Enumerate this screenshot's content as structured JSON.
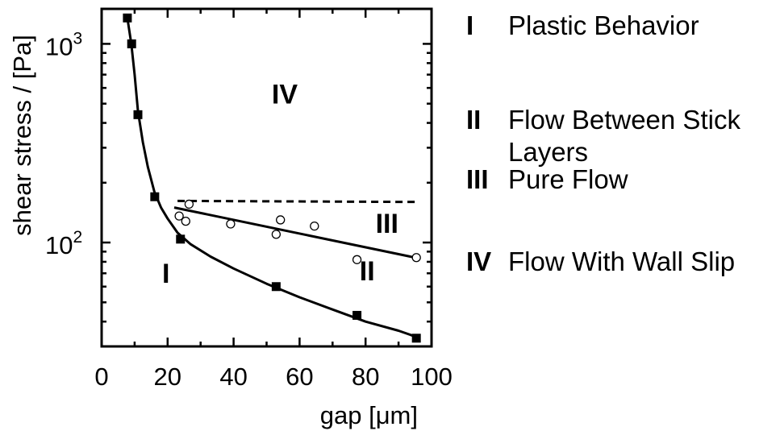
{
  "chart_data": {
    "type": "scatter",
    "xlabel": "gap [μm]",
    "ylabel": "shear stress / [Pa]",
    "xlim": [
      0,
      100
    ],
    "ylim": [
      30,
      1500
    ],
    "yscale": "log",
    "x_ticks": [
      {
        "value": 0,
        "label": "0"
      },
      {
        "value": 20,
        "label": "20"
      },
      {
        "value": 40,
        "label": "40"
      },
      {
        "value": 60,
        "label": "60"
      },
      {
        "value": 80,
        "label": "80"
      },
      {
        "value": 100,
        "label": "100"
      }
    ],
    "y_major_ticks": [
      {
        "value": 100,
        "base": "10",
        "exp": "2"
      },
      {
        "value": 1000,
        "base": "10",
        "exp": "3"
      }
    ],
    "y_minor_ticks": [
      40,
      50,
      60,
      70,
      80,
      90,
      200,
      300,
      400,
      500,
      600,
      700,
      800,
      900
    ],
    "x_minor_ticks": [
      10,
      30,
      50,
      70,
      90
    ],
    "grid": false,
    "series": [
      {
        "marker": "filled-square",
        "points": [
          {
            "x": 7.8,
            "y": 1350
          },
          {
            "x": 9.1,
            "y": 1000
          },
          {
            "x": 11.0,
            "y": 440
          },
          {
            "x": 16.1,
            "y": 170
          },
          {
            "x": 23.9,
            "y": 104
          },
          {
            "x": 52.9,
            "y": 60
          },
          {
            "x": 77.4,
            "y": 43
          },
          {
            "x": 95.4,
            "y": 33
          }
        ]
      },
      {
        "marker": "open-circle",
        "points": [
          {
            "x": 23.5,
            "y": 136
          },
          {
            "x": 25.5,
            "y": 128
          },
          {
            "x": 26.5,
            "y": 156
          },
          {
            "x": 39.1,
            "y": 124
          },
          {
            "x": 52.9,
            "y": 110
          },
          {
            "x": 54.2,
            "y": 130
          },
          {
            "x": 64.5,
            "y": 121
          },
          {
            "x": 77.4,
            "y": 82
          },
          {
            "x": 95.4,
            "y": 84
          }
        ]
      }
    ],
    "curves": [
      {
        "name_hint": "solid boundary I/II",
        "style": "solid",
        "points": [
          [
            7.8,
            1350
          ],
          [
            9.0,
            1000
          ],
          [
            10.0,
            700
          ],
          [
            11.0,
            460
          ],
          [
            12.5,
            320
          ],
          [
            14.0,
            240
          ],
          [
            16.0,
            180
          ],
          [
            18.0,
            150
          ],
          [
            20.0,
            132
          ],
          [
            23.0,
            112
          ],
          [
            27.0,
            98
          ],
          [
            33.0,
            85
          ],
          [
            40.0,
            74
          ],
          [
            50.0,
            62
          ],
          [
            60.0,
            53
          ],
          [
            70.0,
            46
          ],
          [
            80.0,
            40
          ],
          [
            90.0,
            36
          ],
          [
            96.5,
            33
          ]
        ]
      },
      {
        "name_hint": "solid boundary II/III",
        "style": "solid",
        "points": [
          [
            22.0,
            150
          ],
          [
            96.5,
            83
          ]
        ]
      },
      {
        "name_hint": "dashed boundary III/IV",
        "style": "dashed",
        "points": [
          [
            23.0,
            162
          ],
          [
            96.0,
            160
          ]
        ]
      }
    ],
    "annotations": [
      {
        "text": "I",
        "x": 19.5,
        "y": 70
      },
      {
        "text": "II",
        "x": 80.5,
        "y": 72
      },
      {
        "text": "III",
        "x": 86.5,
        "y": 125
      },
      {
        "text": "IV",
        "x": 55.5,
        "y": 560
      }
    ]
  },
  "legend": [
    {
      "numeral": "I",
      "text": "Plastic Behavior"
    },
    {
      "numeral": "II",
      "text": "Flow Between Stick\nLayers"
    },
    {
      "numeral": "III",
      "text": "Pure Flow"
    },
    {
      "numeral": "IV",
      "text": "Flow With Wall Slip"
    }
  ]
}
